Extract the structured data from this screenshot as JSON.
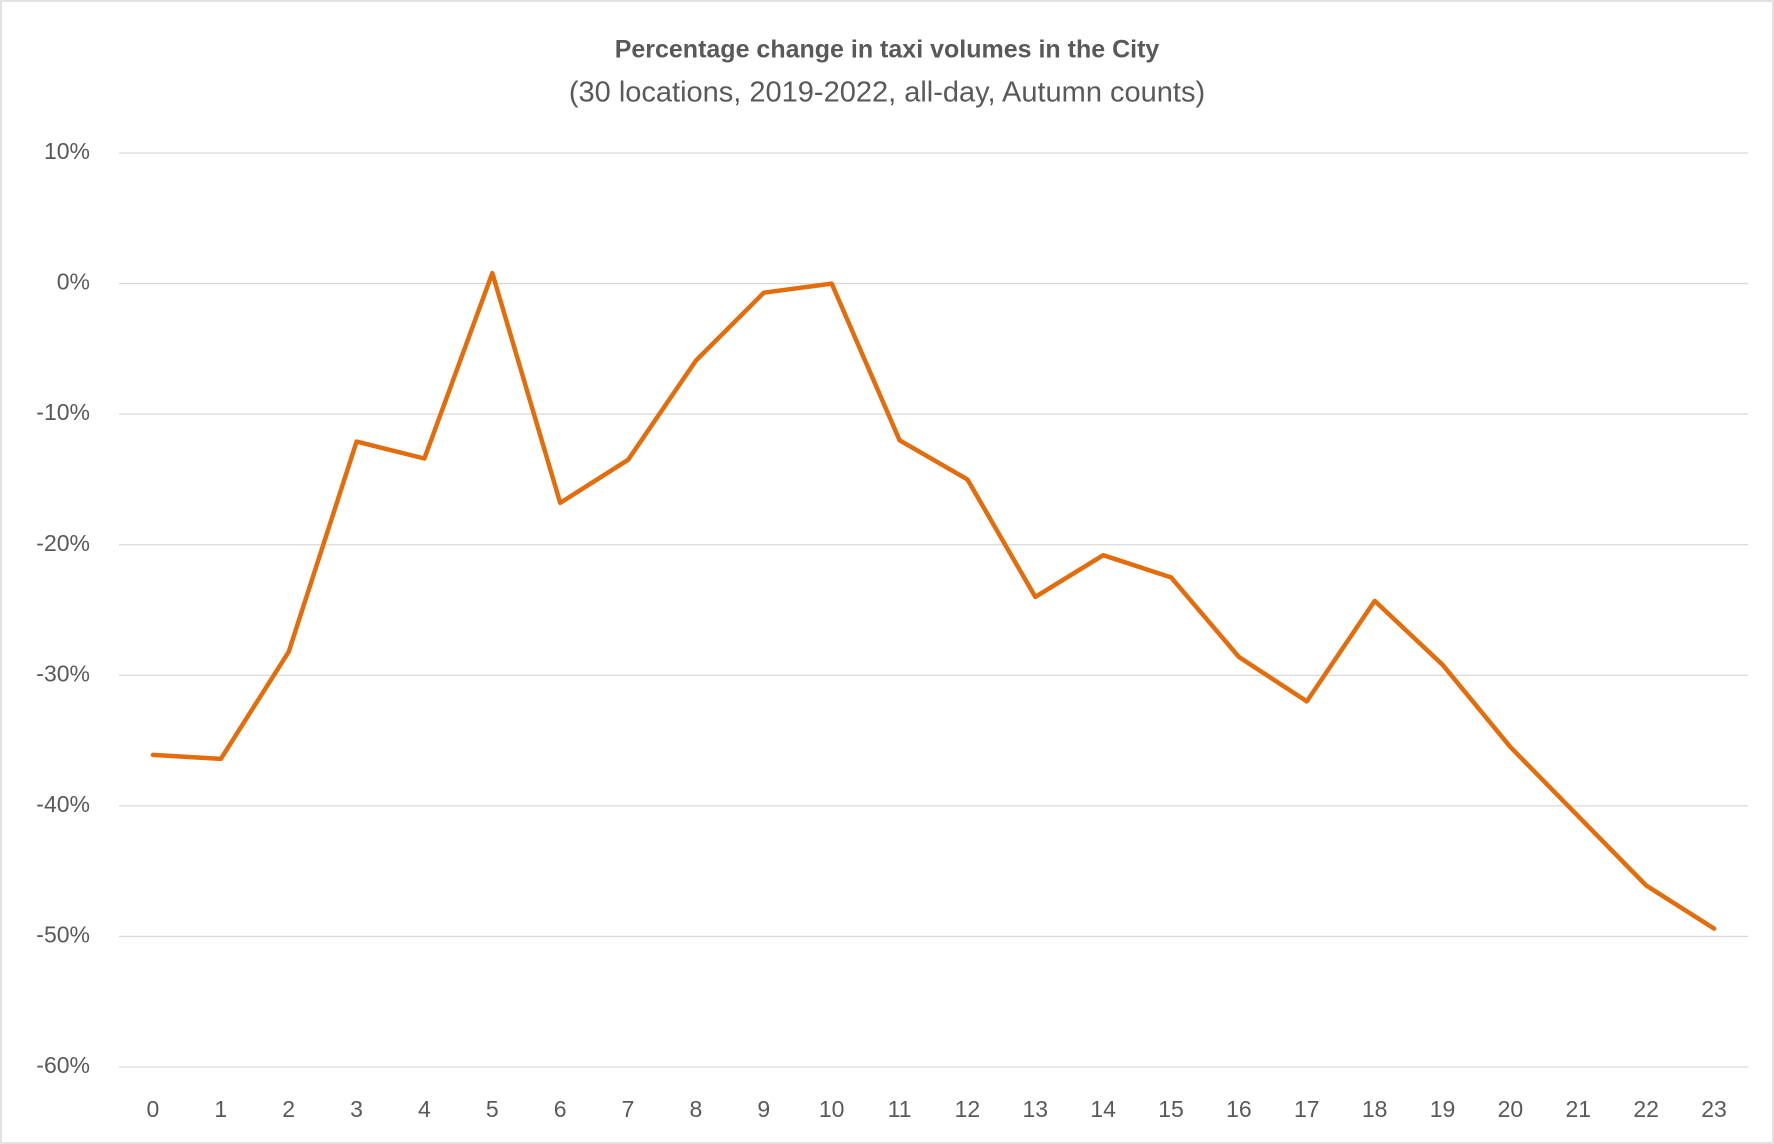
{
  "chart_data": {
    "type": "line",
    "title": "Percentage change in taxi volumes in the City",
    "subtitle": "(30 locations, 2019-2022, all-day, Autumn counts)",
    "categories": [
      "0",
      "1",
      "2",
      "3",
      "4",
      "5",
      "6",
      "7",
      "8",
      "9",
      "10",
      "11",
      "12",
      "13",
      "14",
      "15",
      "16",
      "17",
      "18",
      "19",
      "20",
      "21",
      "22",
      "23"
    ],
    "series": [
      {
        "name": "Percentage change",
        "color": "#e46c0a",
        "values": [
          -36.1,
          -36.4,
          -28.2,
          -12.1,
          -13.4,
          0.8,
          -16.8,
          -13.5,
          -5.9,
          -0.7,
          0,
          -12.0,
          -15.0,
          -24.0,
          -20.8,
          -22.5,
          -28.6,
          -32.0,
          -24.3,
          -29.2,
          -35.5,
          -40.8,
          -46.1,
          -49.4
        ]
      }
    ],
    "ylim": [
      -60,
      10
    ],
    "yticks": [
      {
        "value": -60,
        "label": "-60%"
      },
      {
        "value": -50,
        "label": "-50%"
      },
      {
        "value": -40,
        "label": "-40%"
      },
      {
        "value": -30,
        "label": "-30%"
      },
      {
        "value": -20,
        "label": "-20%"
      },
      {
        "value": -10,
        "label": "-10%"
      },
      {
        "value": 0,
        "label": "0%"
      },
      {
        "value": 10,
        "label": "10%"
      }
    ],
    "grid": true
  }
}
